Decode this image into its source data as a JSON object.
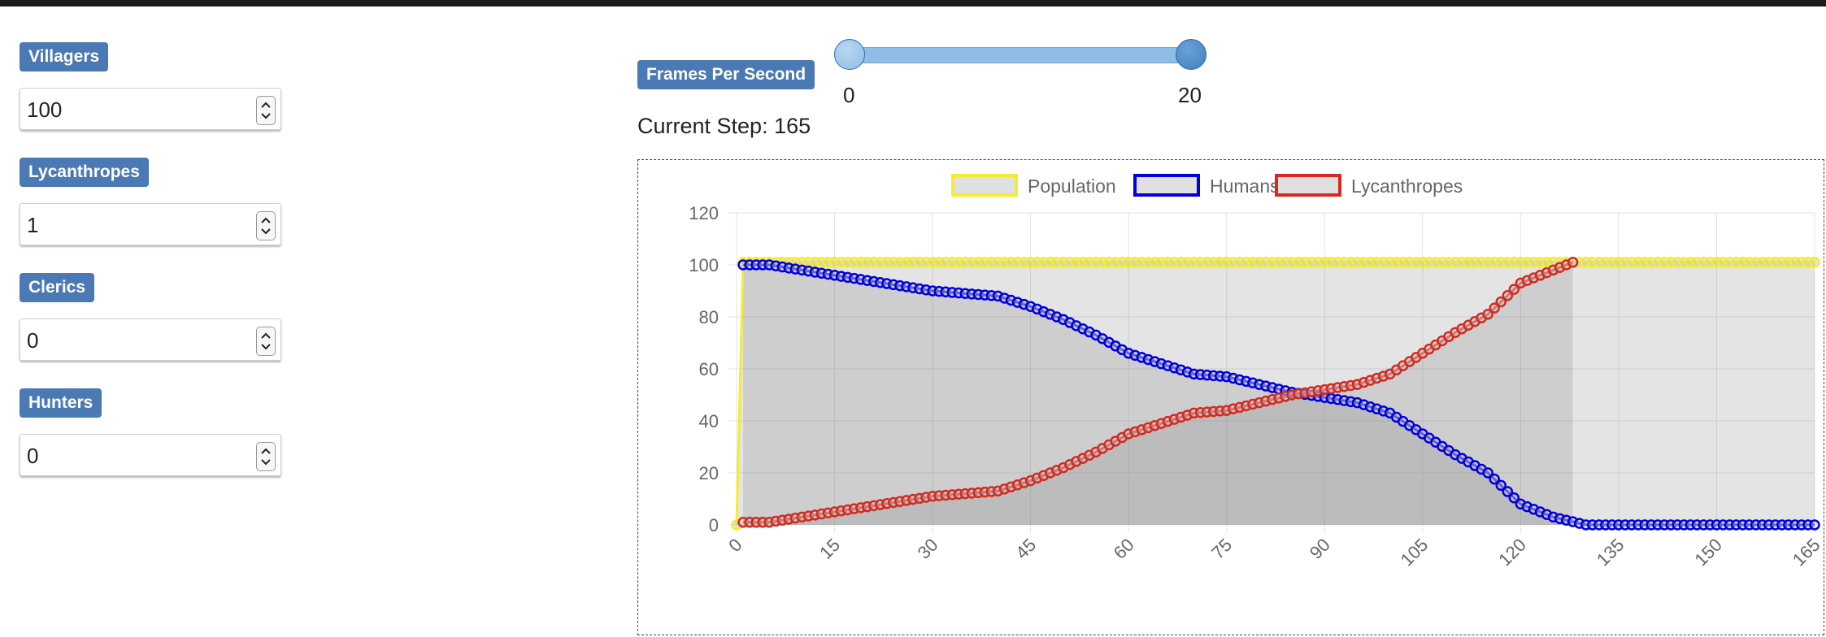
{
  "controls": [
    {
      "label": "Villagers",
      "value": "100"
    },
    {
      "label": "Lycanthropes",
      "value": "1"
    },
    {
      "label": "Clerics",
      "value": "0"
    },
    {
      "label": "Hunters",
      "value": "0"
    }
  ],
  "fps": {
    "label": "Frames Per Second",
    "min_label": "0",
    "max_label": "20",
    "low": 0,
    "high": 20,
    "min": 0,
    "max": 20
  },
  "status": {
    "current_step": "Current Step: 165"
  },
  "colors": {
    "badge": "#4a79b4",
    "slider": "#8ebde6",
    "knob": "#3f7fbf",
    "population": "#f5ec2b",
    "humans": "#0000dd",
    "lycanthropes": "#d42a20"
  },
  "chart_data": {
    "type": "line",
    "title": "",
    "xlabel": "",
    "ylabel": "",
    "xlim": [
      0,
      165
    ],
    "ylim": [
      0,
      120
    ],
    "x_ticks": [
      "0",
      "15",
      "30",
      "45",
      "60",
      "75",
      "90",
      "105",
      "120",
      "135",
      "150",
      "165"
    ],
    "y_ticks": [
      "0",
      "20",
      "40",
      "60",
      "80",
      "100",
      "120"
    ],
    "grid": true,
    "fill": "area",
    "legend_position": "top",
    "series": [
      {
        "name": "Population",
        "color": "#f5ec2b",
        "points": [
          [
            0,
            0
          ],
          [
            1,
            101
          ],
          [
            165,
            101
          ]
        ]
      },
      {
        "name": "Humans",
        "color": "#0000dd",
        "points": [
          [
            1,
            100
          ],
          [
            5,
            100
          ],
          [
            10,
            98
          ],
          [
            15,
            96
          ],
          [
            20,
            94
          ],
          [
            25,
            92
          ],
          [
            30,
            90
          ],
          [
            35,
            89
          ],
          [
            40,
            88
          ],
          [
            45,
            84
          ],
          [
            50,
            79
          ],
          [
            55,
            73
          ],
          [
            60,
            66
          ],
          [
            65,
            62
          ],
          [
            70,
            58
          ],
          [
            75,
            57
          ],
          [
            80,
            54
          ],
          [
            85,
            51
          ],
          [
            90,
            49
          ],
          [
            95,
            47
          ],
          [
            100,
            43
          ],
          [
            105,
            35
          ],
          [
            110,
            27
          ],
          [
            115,
            20
          ],
          [
            120,
            8
          ],
          [
            125,
            3
          ],
          [
            130,
            0
          ],
          [
            165,
            0
          ]
        ]
      },
      {
        "name": "Lycanthropes",
        "color": "#d42a20",
        "points": [
          [
            1,
            1
          ],
          [
            5,
            1
          ],
          [
            10,
            3
          ],
          [
            15,
            5
          ],
          [
            20,
            7
          ],
          [
            25,
            9
          ],
          [
            30,
            11
          ],
          [
            35,
            12
          ],
          [
            40,
            13
          ],
          [
            45,
            17
          ],
          [
            50,
            22
          ],
          [
            55,
            28
          ],
          [
            60,
            35
          ],
          [
            65,
            39
          ],
          [
            70,
            43
          ],
          [
            75,
            44
          ],
          [
            80,
            47
          ],
          [
            85,
            50
          ],
          [
            90,
            52
          ],
          [
            95,
            54
          ],
          [
            100,
            58
          ],
          [
            105,
            66
          ],
          [
            110,
            74
          ],
          [
            115,
            81
          ],
          [
            120,
            93
          ],
          [
            125,
            98
          ],
          [
            128,
            101
          ]
        ]
      }
    ]
  }
}
